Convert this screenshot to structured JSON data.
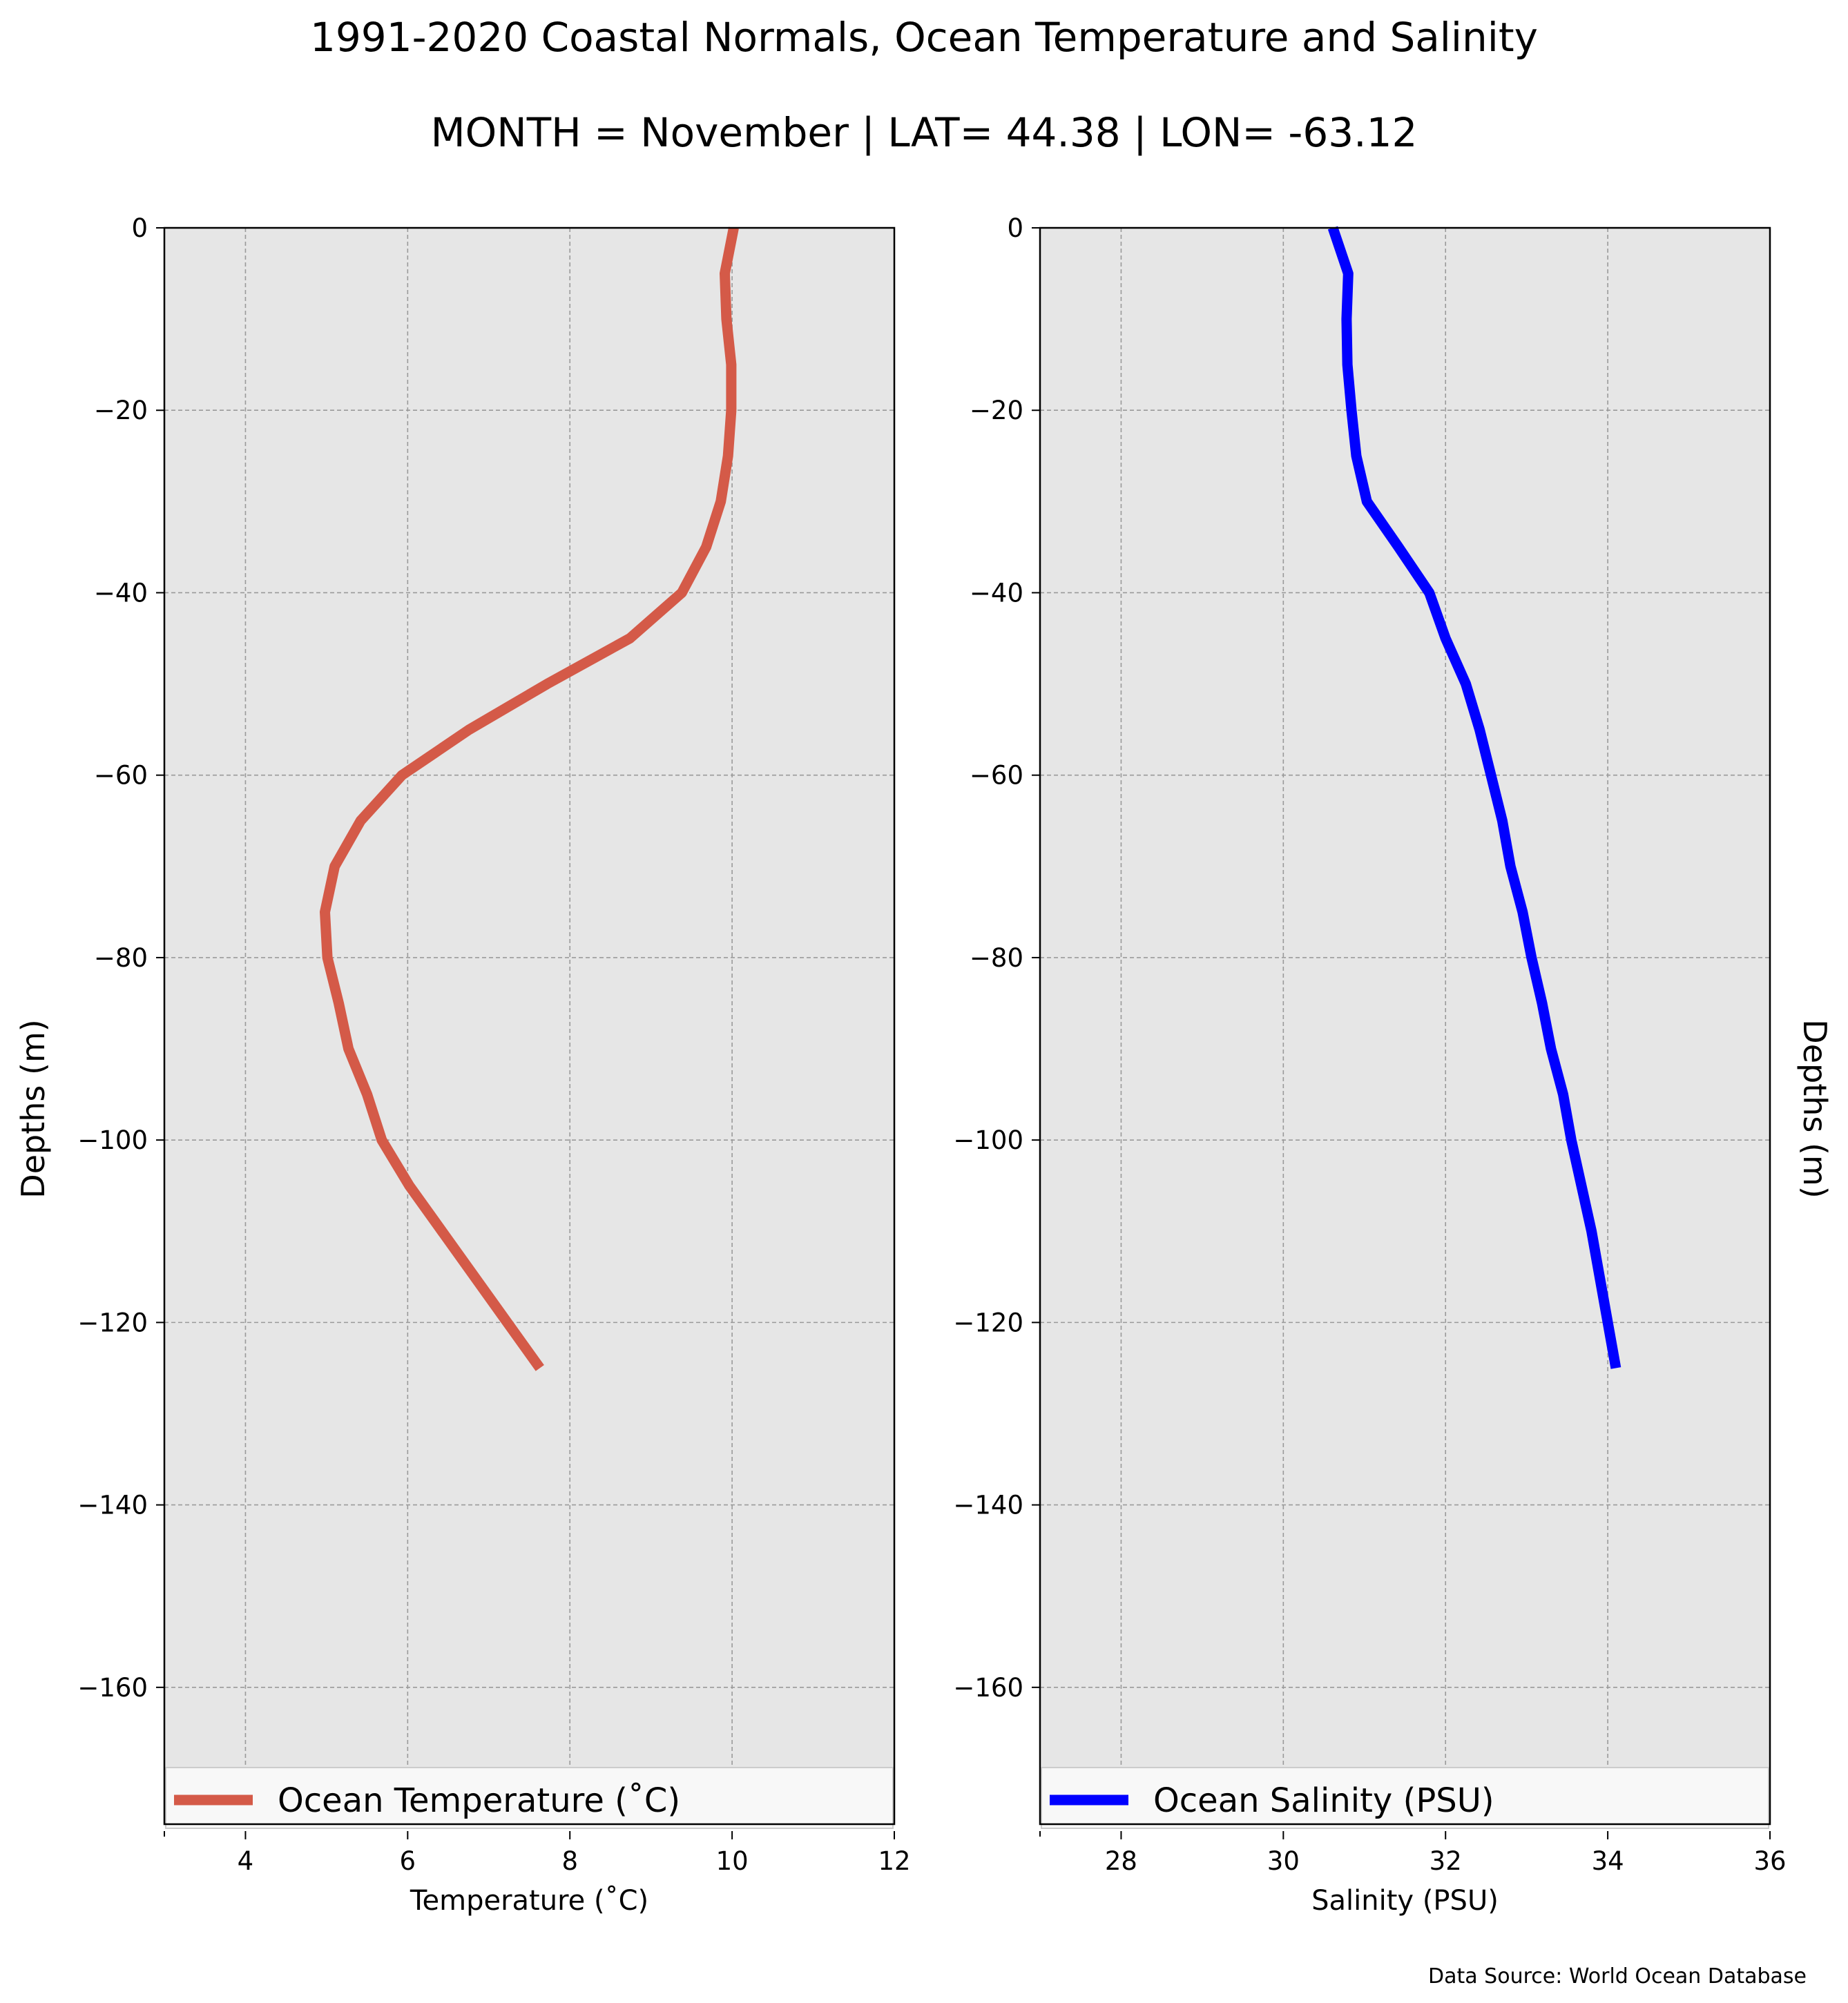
{
  "title": "1991-2020 Coastal Normals, Ocean Temperature and Salinity",
  "subtitle": "MONTH = November | LAT= 44.38 | LON= -63.12",
  "source": "Data Source: World Ocean Database",
  "colors": {
    "temperature": "#d45a48",
    "salinity": "#0000ff",
    "axes_bg": "#e6e6e6",
    "grid": "#9a9a9a"
  },
  "chart_data": [
    {
      "type": "line",
      "xlabel": "Temperature ($^\\circ$C)",
      "xlabel_display": "Temperature (˚C)",
      "ylabel": "Depths (m)",
      "xlim": [
        3,
        12
      ],
      "ylim": [
        -175,
        0
      ],
      "xticks": [
        4,
        6,
        8,
        10,
        12
      ],
      "yticks": [
        0,
        -20,
        -40,
        -60,
        -80,
        -100,
        -120,
        -140,
        -160
      ],
      "grid": true,
      "legend": "bottom",
      "series": [
        {
          "name": "Ocean Temperature (˚C)",
          "color": "#d45a48",
          "x": [
            10.02,
            9.91,
            9.93,
            9.99,
            9.99,
            9.95,
            9.86,
            9.68,
            9.38,
            8.74,
            7.72,
            6.76,
            5.93,
            5.42,
            5.1,
            4.98,
            5.01,
            5.15,
            5.27,
            5.5,
            5.68,
            6.02,
            7.63
          ],
          "y": [
            0,
            -5,
            -10,
            -15,
            -20,
            -25,
            -30,
            -35,
            -40,
            -45,
            -50,
            -55,
            -60,
            -65,
            -70,
            -75,
            -80,
            -85,
            -90,
            -95,
            -100,
            -105,
            -125
          ]
        }
      ]
    },
    {
      "type": "line",
      "xlabel": "Salinity (PSU)",
      "ylabel": "Depths (m)",
      "xlim": [
        27,
        36
      ],
      "ylim": [
        -175,
        0
      ],
      "xticks": [
        28,
        30,
        32,
        34,
        36
      ],
      "yticks": [
        0,
        -20,
        -40,
        -60,
        -80,
        -100,
        -120,
        -140,
        -160
      ],
      "grid": true,
      "legend": "bottom",
      "series": [
        {
          "name": "Ocean Salinity (PSU)",
          "color": "#0000ff",
          "x": [
            30.61,
            30.8,
            30.78,
            30.79,
            30.84,
            30.9,
            31.03,
            31.42,
            31.8,
            32.0,
            32.25,
            32.42,
            32.56,
            32.7,
            32.8,
            32.95,
            33.06,
            33.19,
            33.3,
            33.45,
            33.55,
            33.8,
            34.1
          ],
          "y": [
            0,
            -5,
            -10,
            -15,
            -20,
            -25,
            -30,
            -35,
            -40,
            -45,
            -50,
            -55,
            -60,
            -65,
            -70,
            -75,
            -80,
            -85,
            -90,
            -95,
            -100,
            -110,
            -125
          ]
        }
      ]
    }
  ]
}
